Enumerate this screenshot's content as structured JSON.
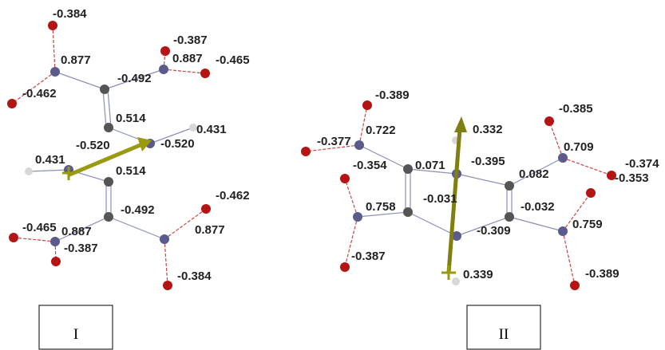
{
  "molecules": [
    {
      "label": "I",
      "charges": [
        "-0.384",
        "0.877",
        "-0.387",
        "0.887",
        "-0.465",
        "-0.492",
        "-0.462",
        "0.514",
        "0.431",
        "-0.520",
        "-0.520",
        "0.431",
        "0.514",
        "-0.492",
        "-0.462",
        "-0.465",
        "0.887",
        "-0.387",
        "0.877",
        "-0.384"
      ]
    },
    {
      "label": "II",
      "charges": [
        "-0.389",
        "0.722",
        "-0.377",
        "0.332",
        "-0.385",
        "0.709",
        "-0.374",
        "-0.354",
        "0.071",
        "-0.395",
        "0.082",
        "-0.353",
        "-0.031",
        "0.758",
        "-0.032",
        "-0.309",
        "0.759",
        "-0.387",
        "0.339",
        "-0.389"
      ]
    }
  ]
}
